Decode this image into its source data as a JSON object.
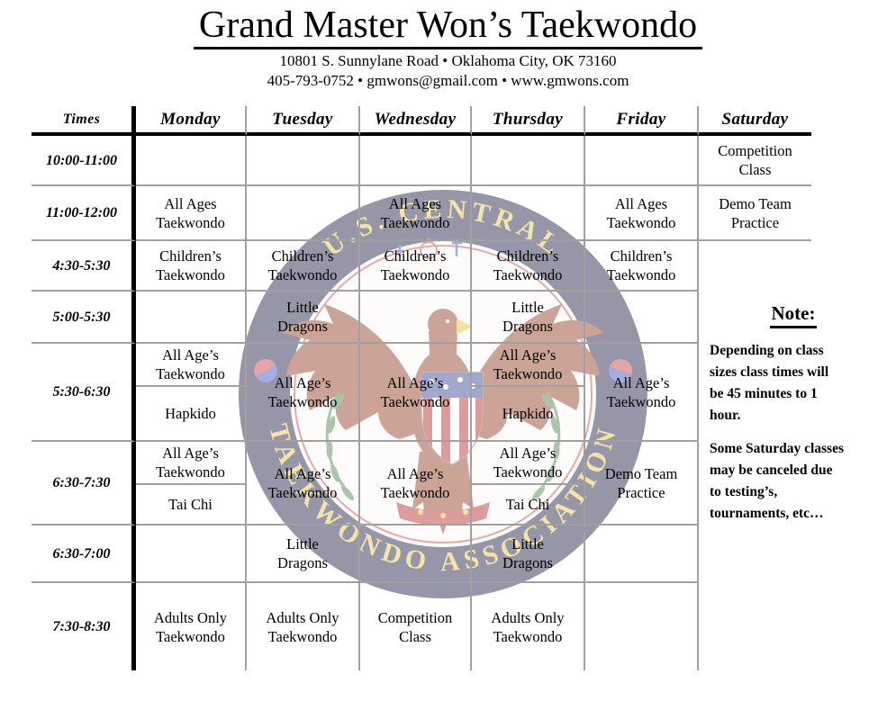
{
  "header": {
    "title": "Grand Master Won’s Taekwondo",
    "address": "10801 S. Sunnylane Road • Oklahoma City, OK 73160",
    "contact": "405-793-0752 • gmwons@gmail.com • www.gmwons.com"
  },
  "watermark": {
    "ring_text_top": "U.S. CENTRAL",
    "ring_text_bottom": "TAEKWONDO ASSOCIATION",
    "colors": {
      "ring": "#12123c",
      "gold": "#e8c23c",
      "field": "#fbf9f4",
      "inner_ring_red": "#c04040",
      "eagle": "#8b2f15",
      "beak": "#e2be2e",
      "shield_blue": "#2a3a8e",
      "shield_red": "#b02020",
      "laurel": "#3f7f3f",
      "taegeuk_red": "#cc3333",
      "taegeuk_blue": "#3344bb",
      "ribbon": "#b02020"
    }
  },
  "schedule": {
    "columns": [
      "Times",
      "Monday",
      "Tuesday",
      "Wednesday",
      "Thursday",
      "Friday",
      "Saturday"
    ],
    "rows": [
      {
        "time": "10:00-11:00",
        "cells": [
          "",
          "",
          "",
          "",
          "",
          "Competition\nClass"
        ]
      },
      {
        "time": "11:00-12:00",
        "cells": [
          "All Ages\nTaekwondo",
          "",
          "All Ages\nTaekwondo",
          "",
          "All Ages\nTaekwondo",
          "Demo Team\nPractice"
        ]
      },
      {
        "time": "4:30-5:30",
        "cells": [
          "Children’s\nTaekwondo",
          "Children’s\nTaekwondo",
          "Children’s\nTaekwondo",
          "Children’s\nTaekwondo",
          "Children’s\nTaekwondo",
          null
        ]
      },
      {
        "time": "5:00-5:30",
        "cells": [
          "",
          "Little\nDragons",
          "",
          "Little\nDragons",
          "",
          null
        ]
      },
      {
        "time": "5:30-6:30",
        "cells": [
          {
            "split": [
              "All Age’s\nTaekwondo",
              "Hapkido"
            ]
          },
          "All Age’s\nTaekwondo",
          "All Age’s\nTaekwondo",
          {
            "split": [
              "All Age’s\nTaekwondo",
              "Hapkido"
            ]
          },
          "All Age’s\nTaekwondo",
          null
        ]
      },
      {
        "time": "6:30-7:30",
        "cells": [
          {
            "split": [
              "All Age’s\nTaekwondo",
              "Tai Chi"
            ]
          },
          "All Age’s\nTaekwondo",
          "All Age’s\nTaekwondo",
          {
            "split": [
              "All Age’s\nTaekwondo",
              "Tai Chi"
            ]
          },
          "Demo Team\nPractice",
          null
        ]
      },
      {
        "time": "6:30-7:00",
        "cells": [
          "",
          "Little\nDragons",
          "",
          "Little\nDragons",
          "",
          null
        ]
      },
      {
        "time": "7:30-8:30",
        "cells": [
          "Adults Only\nTaekwondo",
          "Adults Only\nTaekwondo",
          "Competition\nClass",
          "Adults Only\nTaekwondo",
          "",
          null
        ]
      }
    ]
  },
  "note": {
    "heading": "Note:",
    "paragraphs": [
      "Depending on class\nsizes class times will\nbe 45 minutes to 1\nhour.",
      "Some Saturday classes\nmay be canceled due\nto testing’s,\ntournaments, etc…"
    ]
  }
}
